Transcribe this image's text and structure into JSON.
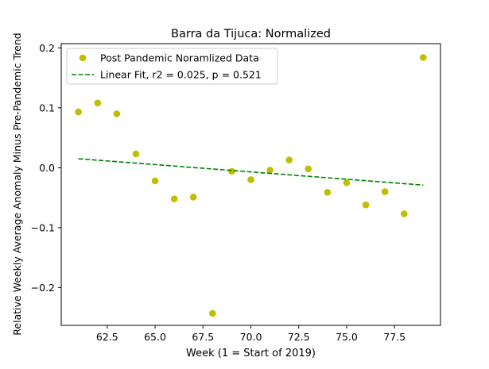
{
  "chart_data": {
    "type": "scatter",
    "title": "Barra da Tijuca: Normalized",
    "xlabel": "Week (1 = Start of 2019)",
    "ylabel": "Relative Weekly Average Anomaly Minus Pre-Pandemic Trend",
    "xlim": [
      60.1,
      79.9
    ],
    "ylim": [
      -0.263,
      0.207
    ],
    "xticks": [
      62.5,
      65.0,
      67.5,
      70.0,
      72.5,
      75.0,
      77.5
    ],
    "xtick_labels": [
      "62.5",
      "65.0",
      "67.5",
      "70.0",
      "72.5",
      "75.0",
      "77.5"
    ],
    "yticks": [
      -0.2,
      -0.1,
      0.0,
      0.1,
      0.2
    ],
    "ytick_labels": [
      "−0.2",
      "−0.1",
      "0.0",
      "0.1",
      "0.2"
    ],
    "grid": false,
    "legend_position": "top-left",
    "series": [
      {
        "name": "Post Pandemic Noramlized Data",
        "kind": "scatter",
        "color": "#bfbf00",
        "x": [
          61,
          62,
          63,
          64,
          65,
          66,
          67,
          68,
          69,
          70,
          71,
          72,
          73,
          74,
          75,
          76,
          77,
          78,
          79
        ],
        "y": [
          0.093,
          0.108,
          0.09,
          0.023,
          -0.022,
          -0.052,
          -0.049,
          -0.243,
          -0.006,
          -0.02,
          -0.004,
          0.013,
          -0.002,
          -0.041,
          -0.025,
          -0.062,
          -0.04,
          -0.077,
          0.184
        ]
      },
      {
        "name": "Linear Fit, r2 = 0.025, p = 0.521",
        "kind": "line",
        "style": "dashed",
        "color": "#008000",
        "x": [
          61,
          79
        ],
        "y": [
          0.015,
          -0.029
        ]
      }
    ]
  }
}
